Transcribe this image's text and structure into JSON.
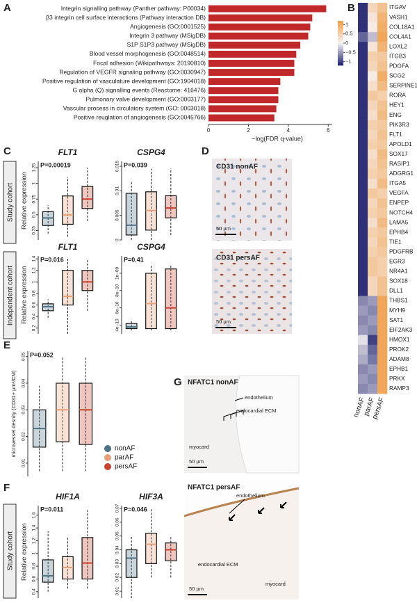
{
  "row_labels": [
    "Study cohort",
    "Independent cohort",
    "Study cohort"
  ],
  "images": {
    "D": {
      "panel": "D",
      "panels": [
        {
          "title": "CD31 nonAF",
          "scale": "50 µm"
        },
        {
          "title": "CD31 persAF",
          "scale": "50 µm"
        }
      ]
    },
    "G": {
      "panel": "G",
      "panels": [
        {
          "title": "NFATC1 nonAF",
          "annotations": [
            "endothelium",
            "endocardial ECM",
            "myocard"
          ],
          "scale": "50 µm"
        },
        {
          "title": "NFATC1 persAF",
          "annotations": [
            "endothelium",
            "endocardial ECM",
            "myocard"
          ],
          "scale": "50 µm"
        }
      ]
    }
  },
  "chart_data": [
    {
      "type": "hbar",
      "panel": "A",
      "xlabel": "−log(FDR q-value)",
      "color": "#c0282a",
      "categories": [
        "Integrin signalling pathway (Panther pathway: P00034)",
        "β3 integrin cell surface interactions (Pathway interaction DB)",
        "Angiogenesis (GO:0001525)",
        "Integrin 3 pathway (MSigDB)",
        "S1P S1P3 pathway (MSigDB)",
        "Blood vessel morphogenesis (GO:0048514)",
        "Focal adhesion (Wikipathways: 20190810)",
        "Regulation of VEGFR signaling pathway  (GO:0030947)",
        "Positive regulation of vasculature development (GO:1904018)",
        "G alpha (Q) signalling events (Reactome: 416476)",
        "Pulmonary valve development (GO:0003177)",
        "Vascular process in circulatory system (GO: 0003018)",
        "Positive reuglation of angiogenesis (GO:0045766)"
      ],
      "values": [
        5.9,
        5.2,
        5.1,
        5.0,
        4.6,
        4.4,
        4.3,
        4.3,
        3.6,
        3.5,
        3.5,
        3.4,
        3.3
      ],
      "xlim": [
        0,
        6.2
      ],
      "xticks": [
        0,
        2,
        4,
        6
      ]
    },
    {
      "type": "heatmap",
      "panel": "B",
      "columns": [
        "nonAF",
        "parAF",
        "persAF"
      ],
      "rows": [
        "ITGAV",
        "VASH1",
        "COL18A1",
        "COL4A1",
        "LOXL2",
        "ITGB3",
        "PDGFA",
        "SCG2",
        "SERPINE1",
        "RORA",
        "HEY1",
        "ENG",
        "PIK3R3",
        "FLT1",
        "APOLD1",
        "SOX17",
        "RASIP1",
        "ADGRG1",
        "ITGA5",
        "VEGFA",
        "ENPEP",
        "NOTCH4",
        "LAMA5",
        "EPHB4",
        "TIE1",
        "PDGFRB",
        "EGR3",
        "NR4A1",
        "SOX18",
        "DLL1",
        "THBS1",
        "MYH9",
        "SAT1",
        "EIF2AK3",
        "HMOX1",
        "PROK2",
        "ADAM8",
        "EPHB1",
        "PRKX",
        "RAMP3"
      ],
      "values": [
        [
          -1.1,
          0.4,
          0.7
        ],
        [
          -1.1,
          0.2,
          0.9
        ],
        [
          -1.1,
          0.1,
          1.0
        ],
        [
          -0.8,
          -0.3,
          1.1
        ],
        [
          -1.1,
          0.2,
          0.9
        ],
        [
          -1.1,
          0.5,
          0.6
        ],
        [
          -1.1,
          0.4,
          0.7
        ],
        [
          -1.1,
          0.1,
          1.0
        ],
        [
          -1.1,
          0.3,
          0.8
        ],
        [
          -1.1,
          0.6,
          0.5
        ],
        [
          -1.1,
          0.4,
          0.7
        ],
        [
          -1.1,
          0.3,
          0.8
        ],
        [
          -1.1,
          0.5,
          0.6
        ],
        [
          -1.1,
          0.4,
          0.7
        ],
        [
          -1.1,
          0.5,
          0.6
        ],
        [
          -1.1,
          0.3,
          0.8
        ],
        [
          -1.1,
          0.4,
          0.7
        ],
        [
          -1.1,
          0.5,
          0.6
        ],
        [
          -1.1,
          0.3,
          0.8
        ],
        [
          -1.1,
          0.6,
          0.5
        ],
        [
          -1.1,
          0.4,
          0.7
        ],
        [
          -1.1,
          0.5,
          0.6
        ],
        [
          -1.1,
          0.3,
          0.8
        ],
        [
          -1.1,
          0.5,
          0.6
        ],
        [
          -1.1,
          0.4,
          0.7
        ],
        [
          -1.1,
          0.5,
          0.6
        ],
        [
          -1.1,
          0.6,
          0.5
        ],
        [
          -1.1,
          0.6,
          0.5
        ],
        [
          -1.1,
          0.4,
          0.7
        ],
        [
          -1.1,
          0.4,
          0.7
        ],
        [
          -0.6,
          -0.5,
          1.1
        ],
        [
          -0.5,
          -0.6,
          1.1
        ],
        [
          -0.6,
          -0.5,
          1.1
        ],
        [
          -0.5,
          -0.6,
          1.1
        ],
        [
          -0.1,
          -1.0,
          1.1
        ],
        [
          -0.3,
          -0.8,
          1.1
        ],
        [
          -0.4,
          -0.7,
          1.1
        ],
        [
          -0.6,
          -0.5,
          1.1
        ],
        [
          -0.5,
          -0.6,
          1.1
        ],
        [
          -0.6,
          -0.5,
          1.1
        ]
      ],
      "colormap": [
        "#1c1f6e",
        "#f6f2f2",
        "#f0a04c"
      ],
      "zlim": [
        -1.2,
        1.2
      ],
      "zticks": [
        1,
        0.5,
        0,
        {
          "value": -0.5,
          "label": "−0.5"
        },
        {
          "value": -1,
          "label": "−1"
        }
      ]
    },
    {
      "type": "box",
      "panel": "C",
      "title": "FLT1",
      "ylabel": "Relative expression",
      "annotation": "P=0.00019",
      "ylim": [
        0.1,
        1.35
      ],
      "yticks": [
        0.25,
        0.5,
        0.75,
        1,
        1.25
      ],
      "boxes": [
        {
          "color": "#4d7384",
          "whisker_low": 0.2,
          "q1": 0.33,
          "median": 0.45,
          "q3": 0.55,
          "whisker_high": 0.65
        },
        {
          "color": "#e8a078",
          "whisker_low": 0.15,
          "q1": 0.35,
          "median": 0.5,
          "q3": 0.8,
          "whisker_high": 1.1
        },
        {
          "color": "#c8412e",
          "whisker_low": 0.4,
          "q1": 0.6,
          "median": 0.75,
          "q3": 0.95,
          "whisker_high": 1.25
        }
      ]
    },
    {
      "type": "box",
      "title": "CSPG4",
      "annotation": "P=0.039",
      "ylim": [
        0,
        0.016
      ],
      "yticks": [
        0,
        0.005,
        0.01,
        0.015
      ],
      "boxes": [
        {
          "color": "#4d7384",
          "whisker_low": 0,
          "q1": 0.001,
          "median": 0.003,
          "q3": 0.0095,
          "whisker_high": 0.012
        },
        {
          "color": "#e8a078",
          "whisker_low": 0,
          "q1": 0.002,
          "median": 0.006,
          "q3": 0.0098,
          "whisker_high": 0.0145
        },
        {
          "color": "#c8412e",
          "whisker_low": 0.001,
          "q1": 0.0045,
          "median": 0.0065,
          "q3": 0.009,
          "whisker_high": 0.0145
        }
      ]
    },
    {
      "type": "box",
      "title": "FLT1",
      "ylabel": "Relative expression",
      "annotation": "P=0.016",
      "ylim": [
        0.1,
        1.45
      ],
      "yticks": [
        0.2,
        0.4,
        0.6,
        0.8,
        1,
        1.2,
        1.4
      ],
      "boxes": [
        {
          "color": "#4d7384",
          "whisker_low": 0.38,
          "q1": 0.5,
          "median": 0.57,
          "q3": 0.62,
          "whisker_high": 0.7
        },
        {
          "color": "#e8a078",
          "whisker_low": 0.1,
          "q1": 0.6,
          "median": 0.75,
          "q3": 1.2,
          "whisker_high": 1.4
        },
        {
          "color": "#c8412e",
          "whisker_low": 0.5,
          "q1": 0.85,
          "median": 1,
          "q3": 1.2,
          "whisker_high": 1.4
        }
      ]
    },
    {
      "type": "box",
      "title": "CSPG4",
      "annotation": "P=0.41",
      "ylim": [
        3e-10,
        1.2e-09
      ],
      "yticks": [
        {
          "value": 4e-10,
          "label": "4e−10"
        },
        {
          "value": 6e-10,
          "label": "6e−10"
        },
        {
          "value": 8e-10,
          "label": "8e−10"
        },
        {
          "value": 1e-09,
          "label": "1e−09"
        }
      ],
      "boxes": [
        {
          "color": "#4d7384",
          "whisker_low": 3.4e-10,
          "q1": 3.6e-10,
          "median": 3.8e-10,
          "q3": 4.2e-10,
          "whisker_high": 4.6e-10
        },
        {
          "color": "#e8a078",
          "whisker_low": 3.4e-10,
          "q1": 3.6e-10,
          "median": 6.5e-10,
          "q3": 1e-09,
          "whisker_high": 1.1e-09
        },
        {
          "color": "#c8412e",
          "whisker_low": 3.4e-10,
          "q1": 3.6e-10,
          "median": 6e-10,
          "q3": 1.05e-09,
          "whisker_high": 1.1e-09
        }
      ]
    },
    {
      "type": "box",
      "panel": "E",
      "ylabel": "microvessel desnity (CD31+ µm²/CM)",
      "annotation": "P=0.052",
      "ylim": [
        0.005,
        0.052
      ],
      "yticks": [
        0.01,
        0.02,
        0.03,
        0.04,
        0.05
      ],
      "legend": [
        {
          "name": "nonAF",
          "color": "#4d7384"
        },
        {
          "name": "parAF",
          "color": "#e8a078"
        },
        {
          "name": "persAF",
          "color": "#c8412e"
        }
      ],
      "boxes": [
        {
          "color": "#4d7384",
          "whisker_low": 0.007,
          "q1": 0.016,
          "median": 0.023,
          "q3": 0.03,
          "whisker_high": 0.039
        },
        {
          "color": "#e8a078",
          "whisker_low": 0.007,
          "q1": 0.018,
          "median": 0.03,
          "q3": 0.04,
          "whisker_high": 0.05
        },
        {
          "color": "#c8412e",
          "whisker_low": 0.007,
          "q1": 0.017,
          "median": 0.03,
          "q3": 0.04,
          "whisker_high": 0.05
        }
      ]
    },
    {
      "type": "box",
      "panel": "F",
      "title": "HIF1A",
      "ylabel": "Relative expression",
      "annotation": "P=0.011",
      "ylim": [
        0.3,
        1.75
      ],
      "yticks": [
        0.4,
        0.6,
        0.8,
        1,
        1.2,
        1.4,
        1.6
      ],
      "boxes": [
        {
          "color": "#4d7384",
          "whisker_low": 0.4,
          "q1": 0.55,
          "median": 0.65,
          "q3": 0.9,
          "whisker_high": 1.35
        },
        {
          "color": "#e8a078",
          "whisker_low": 0.45,
          "q1": 0.6,
          "median": 0.78,
          "q3": 0.95,
          "whisker_high": 1.25
        },
        {
          "color": "#c8412e",
          "whisker_low": 0.45,
          "q1": 0.6,
          "median": 0.85,
          "q3": 1.25,
          "whisker_high": 1.7
        }
      ]
    },
    {
      "type": "box",
      "title": "HIF3A",
      "annotation": "P=0.046",
      "ylim": [
        0.005,
        0.072
      ],
      "yticks": [
        0.01,
        0.02,
        0.03,
        0.04,
        0.05,
        0.06,
        0.07
      ],
      "boxes": [
        {
          "color": "#4d7384",
          "whisker_low": 0.005,
          "q1": 0.02,
          "median": 0.034,
          "q3": 0.04,
          "whisker_high": 0.05
        },
        {
          "color": "#e8a078",
          "whisker_low": 0.02,
          "q1": 0.03,
          "median": 0.044,
          "q3": 0.052,
          "whisker_high": 0.07
        },
        {
          "color": "#c8412e",
          "whisker_low": 0.02,
          "q1": 0.032,
          "median": 0.04,
          "q3": 0.045,
          "whisker_high": 0.05
        }
      ]
    }
  ]
}
